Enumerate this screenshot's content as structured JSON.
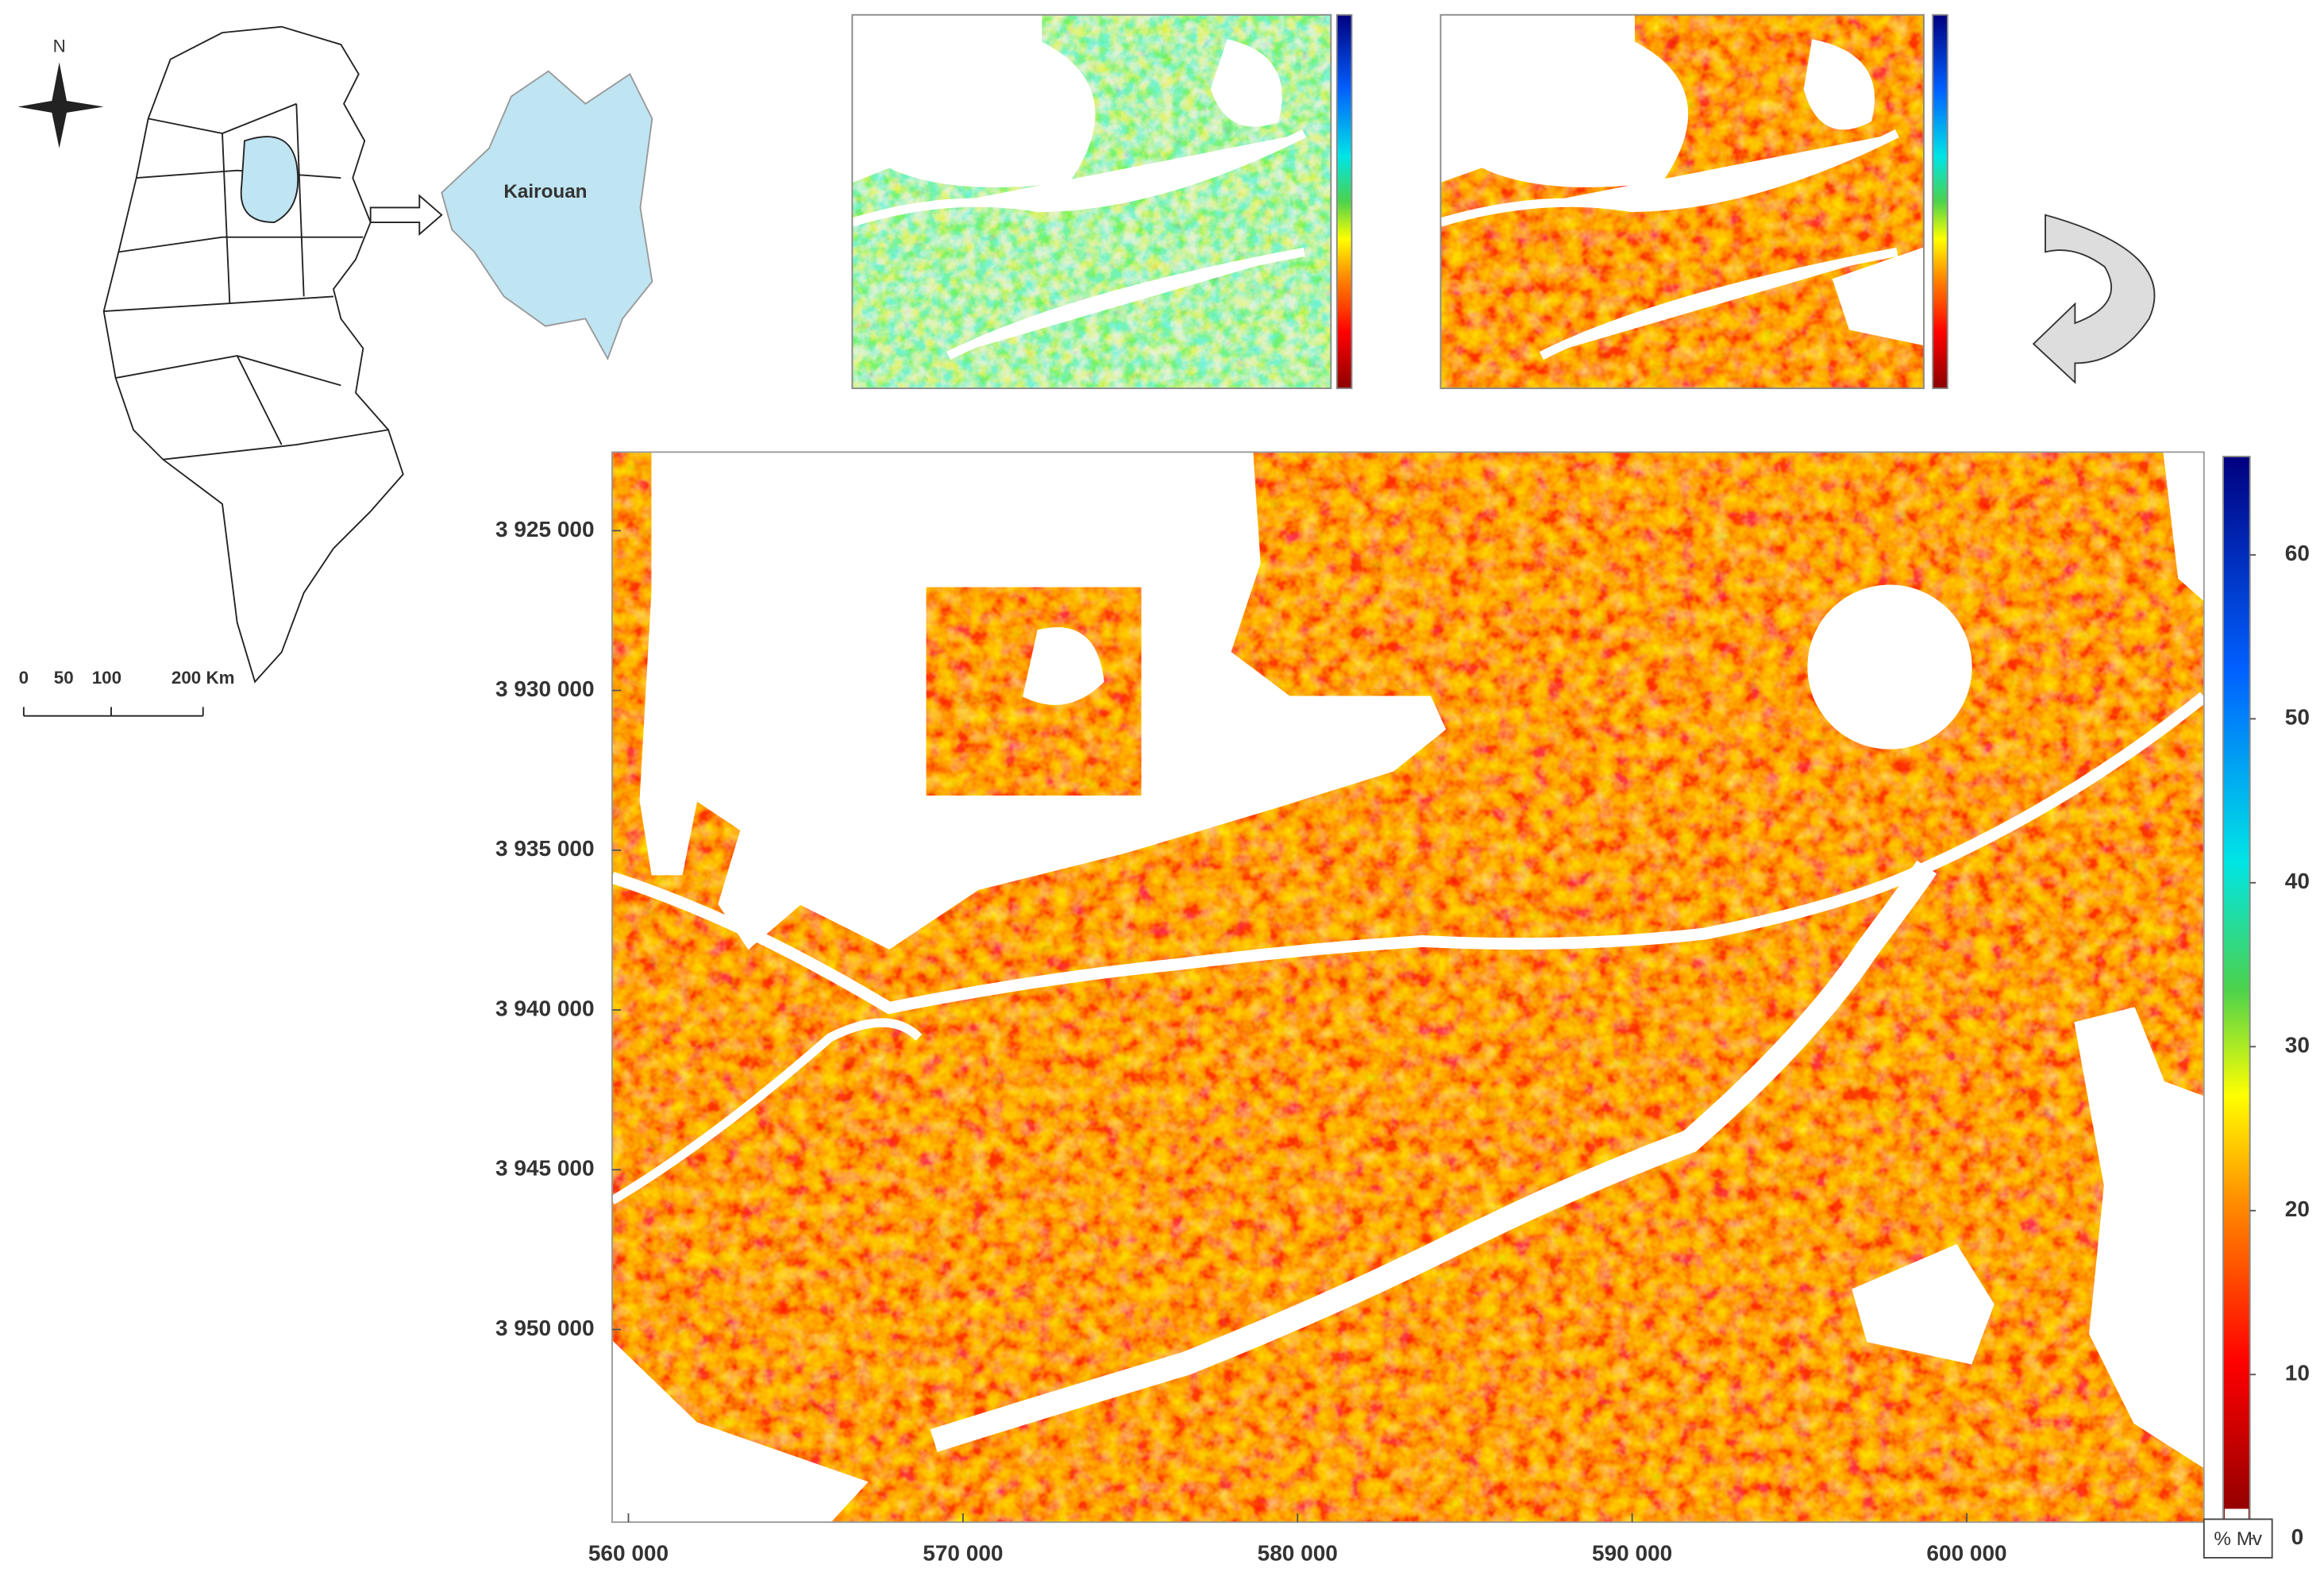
{
  "map": {
    "north": "N",
    "region": "Kairouan",
    "scale": [
      "0",
      "50",
      "100",
      "200 Km"
    ]
  },
  "chart_data": {
    "type": "raster",
    "xlim": [
      559513,
      607090
    ],
    "ylim": [
      3922540,
      3956030
    ],
    "xticks": [
      {
        "value": 560000,
        "label": "560 000"
      },
      {
        "value": 570000,
        "label": "570 000"
      },
      {
        "value": 580000,
        "label": "580 000"
      },
      {
        "value": 590000,
        "label": "590 000"
      },
      {
        "value": 600000,
        "label": "600 000"
      }
    ],
    "yticks": [
      {
        "value": 3925000,
        "label": "3 925 000"
      },
      {
        "value": 3930000,
        "label": "3 930 000"
      },
      {
        "value": 3935000,
        "label": "3 935 000"
      },
      {
        "value": 3940000,
        "label": "3 940 000"
      },
      {
        "value": 3945000,
        "label": "3 945 000"
      },
      {
        "value": 3950000,
        "label": "3 950 000"
      }
    ],
    "clim": [
      0,
      66
    ],
    "cticks": [
      0,
      10,
      20,
      30,
      40,
      50,
      60
    ],
    "colorbar_label": "% Mv"
  }
}
